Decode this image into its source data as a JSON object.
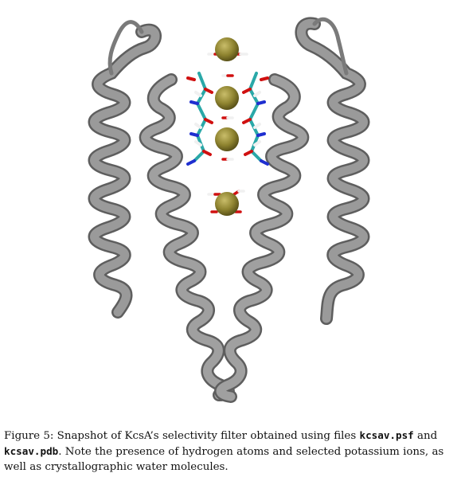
{
  "figure": {
    "colors": {
      "helix": "#8c8c8c",
      "helix_edge": "#5e5e5e",
      "ion": "#8f8430",
      "oxygen": "#d01010",
      "nitrogen": "#1f2fd0",
      "carbon": "#2aa8a8",
      "hydrogen": "#f0f0f0"
    },
    "caption": {
      "label": "Figure 5:",
      "part1": "Snapshot of KcsA’s selectivity filter obtained using files",
      "file1": "kcsav.psf",
      "part2": "and",
      "file2": "kcsav.pdb",
      "part3": ". Note the presence of hydrogen atoms and selected potassium ions, as well as crystallographic water molecules."
    }
  }
}
